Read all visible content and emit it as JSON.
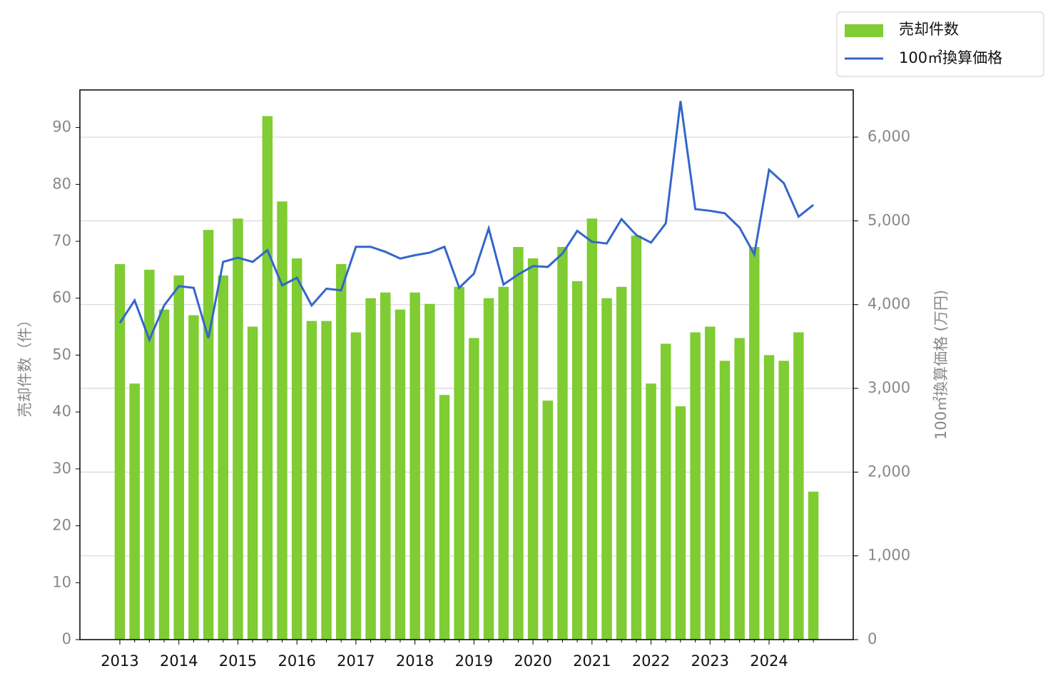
{
  "chart_data": {
    "type": "bar_line",
    "categories": [
      "2013",
      null,
      null,
      null,
      "2014",
      null,
      null,
      null,
      "2015",
      null,
      null,
      null,
      "2016",
      null,
      null,
      null,
      "2017",
      null,
      null,
      null,
      "2018",
      null,
      null,
      null,
      "2019",
      null,
      null,
      null,
      "2020",
      null,
      null,
      null,
      "2021",
      null,
      null,
      null,
      "2022",
      null,
      null,
      null,
      "2023",
      null,
      null,
      null,
      "2024",
      null,
      null,
      null
    ],
    "series": [
      {
        "name": "売却件数",
        "type": "bar",
        "color": "#7fcc33",
        "values": [
          66,
          45,
          65,
          58,
          64,
          57,
          72,
          64,
          74,
          55,
          92,
          77,
          67,
          56,
          56,
          66,
          54,
          60,
          61,
          58,
          61,
          59,
          43,
          62,
          53,
          60,
          62,
          69,
          67,
          42,
          69,
          63,
          74,
          60,
          62,
          71,
          45,
          52,
          41,
          54,
          55,
          49,
          53,
          69,
          50,
          49,
          54,
          26
        ]
      },
      {
        "name": "100㎡換算価格",
        "type": "line",
        "axis": "y2",
        "color": "#3366cc",
        "values": [
          3780,
          4050,
          3580,
          3990,
          4220,
          4200,
          3600,
          4510,
          4560,
          4510,
          4650,
          4230,
          4320,
          3990,
          4190,
          4170,
          4690,
          4690,
          4630,
          4550,
          4590,
          4620,
          4690,
          4200,
          4370,
          4910,
          4240,
          4360,
          4460,
          4450,
          4610,
          4880,
          4750,
          4730,
          5020,
          4830,
          4740,
          4970,
          6430,
          5140,
          5120,
          5090,
          4920,
          4600,
          5610,
          5450,
          5050,
          5190
        ]
      }
    ],
    "ylabel": "売却件数（件）",
    "y2label": "100㎡換算価格 (万円)",
    "ylim": [
      0,
      96.6
    ],
    "yticks": [
      0,
      10,
      20,
      30,
      40,
      50,
      60,
      70,
      80,
      90
    ],
    "y2lim": [
      0,
      6563
    ],
    "y2ticks": [
      0,
      {
        "value": 1000,
        "label": "1,000"
      },
      {
        "value": 2000,
        "label": "2,000"
      },
      {
        "value": 3000,
        "label": "3,000"
      },
      {
        "value": 4000,
        "label": "4,000"
      },
      {
        "value": 5000,
        "label": "5,000"
      },
      {
        "value": 6000,
        "label": "6,000"
      }
    ],
    "grid": "y2",
    "legend": "upper right outside"
  }
}
